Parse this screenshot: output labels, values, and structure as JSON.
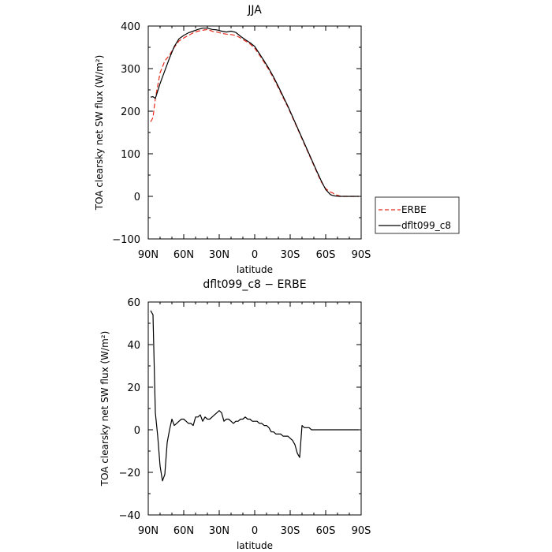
{
  "chart_data": [
    {
      "type": "line",
      "title": "JJA",
      "xlabel": "latitude",
      "ylabel": "TOA clearsky net SW flux (W/m²)",
      "xlim": [
        90,
        -90
      ],
      "ylim": [
        -100,
        400
      ],
      "x_ticks": [
        90,
        60,
        30,
        0,
        -30,
        -60,
        -90
      ],
      "x_tick_labels": [
        "90N",
        "60N",
        "30N",
        "0",
        "30S",
        "60S",
        "90S"
      ],
      "y_ticks": [
        -100,
        0,
        100,
        200,
        300,
        400
      ],
      "y_tick_labels": [
        "−100",
        "0",
        "100",
        "200",
        "300",
        "400"
      ],
      "legend": {
        "placement": "right-outside",
        "entries": [
          "ERBE",
          "dflt099_c8"
        ]
      },
      "series": [
        {
          "name": "ERBE",
          "color": "#e8291c",
          "dash": "dashed",
          "x": [
            88,
            86,
            84,
            80,
            76,
            72,
            68,
            64,
            60,
            56,
            52,
            48,
            44,
            40,
            36,
            32,
            28,
            24,
            20,
            16,
            12,
            8,
            4,
            0,
            -4,
            -8,
            -12,
            -16,
            -20,
            -24,
            -28,
            -32,
            -36,
            -40,
            -44,
            -48,
            -52,
            -56,
            -60,
            -64,
            -66,
            -68,
            -72,
            -76,
            -80,
            -84,
            -88
          ],
          "y": [
            175,
            185,
            230,
            290,
            318,
            332,
            350,
            365,
            372,
            378,
            384,
            388,
            390,
            392,
            388,
            386,
            383,
            381,
            380,
            378,
            372,
            365,
            358,
            348,
            332,
            315,
            297,
            277,
            255,
            232,
            210,
            185,
            160,
            135,
            110,
            85,
            60,
            35,
            18,
            10,
            8,
            4,
            1,
            0,
            0,
            0,
            0
          ]
        },
        {
          "name": "dflt099_c8",
          "color": "#000000",
          "dash": "solid",
          "x": [
            88,
            86,
            84,
            80,
            76,
            72,
            68,
            64,
            60,
            56,
            52,
            48,
            44,
            40,
            36,
            32,
            28,
            24,
            20,
            16,
            12,
            8,
            4,
            0,
            -4,
            -8,
            -12,
            -16,
            -20,
            -24,
            -28,
            -32,
            -36,
            -40,
            -44,
            -48,
            -52,
            -56,
            -60,
            -64,
            -66,
            -68,
            -72,
            -76,
            -80,
            -84,
            -88
          ],
          "y": [
            233,
            234,
            230,
            265,
            295,
            325,
            352,
            370,
            378,
            384,
            388,
            392,
            395,
            395,
            392,
            391,
            388,
            386,
            388,
            385,
            376,
            368,
            361,
            352,
            335,
            318,
            300,
            280,
            258,
            235,
            212,
            187,
            162,
            137,
            112,
            87,
            62,
            38,
            16,
            4,
            2,
            1,
            0,
            0,
            0,
            0,
            0
          ]
        }
      ]
    },
    {
      "type": "line",
      "title": "dflt099_c8 − ERBE",
      "xlabel": "latitude",
      "ylabel": "TOA clearsky net SW flux (W/m²)",
      "xlim": [
        90,
        -90
      ],
      "ylim": [
        -40,
        60
      ],
      "x_ticks": [
        90,
        60,
        30,
        0,
        -30,
        -60,
        -90
      ],
      "x_tick_labels": [
        "90N",
        "60N",
        "30N",
        "0",
        "30S",
        "60S",
        "90S"
      ],
      "y_ticks": [
        -40,
        -20,
        0,
        20,
        40,
        60
      ],
      "y_tick_labels": [
        "−40",
        "−20",
        "0",
        "20",
        "40",
        "60"
      ],
      "series": [
        {
          "color": "#000000",
          "dash": "solid",
          "x": [
            88,
            86,
            84,
            82,
            80,
            78,
            76,
            74,
            72,
            70,
            68,
            66,
            64,
            62,
            60,
            58,
            56,
            54,
            52,
            50,
            48,
            46,
            44,
            42,
            40,
            38,
            36,
            34,
            32,
            30,
            28,
            26,
            24,
            22,
            20,
            18,
            16,
            14,
            12,
            10,
            8,
            6,
            4,
            2,
            0,
            -2,
            -4,
            -6,
            -8,
            -10,
            -12,
            -14,
            -16,
            -18,
            -20,
            -22,
            -24,
            -26,
            -28,
            -30,
            -32,
            -34,
            -36,
            -38,
            -40,
            -42,
            -44,
            -46,
            -48,
            -50,
            -52,
            -54,
            -56,
            -58,
            -60,
            -62,
            -64,
            -66,
            -68,
            -70,
            -72,
            -74,
            -76,
            -78,
            -80,
            -82,
            -84,
            -86,
            -88
          ],
          "y": [
            56,
            54,
            8,
            -3,
            -17,
            -24,
            -21,
            -6,
            0,
            5,
            2,
            3,
            4,
            5,
            5,
            4,
            3,
            3,
            2,
            6,
            6,
            7,
            4,
            6,
            5,
            5,
            6,
            7,
            8,
            9,
            8,
            4,
            5,
            5,
            4,
            3,
            4,
            4,
            5,
            5,
            6,
            5,
            5,
            4,
            4,
            4,
            3,
            3,
            2,
            2,
            1,
            -1,
            -1,
            -2,
            -2,
            -2,
            -3,
            -3,
            -3,
            -4,
            -5,
            -7,
            -11,
            -13,
            2,
            1,
            1,
            1,
            0,
            0,
            0,
            0,
            0,
            0,
            0,
            0,
            0,
            0,
            0,
            0,
            0,
            0,
            0,
            0,
            0,
            0,
            0,
            0,
            0
          ]
        }
      ]
    }
  ]
}
